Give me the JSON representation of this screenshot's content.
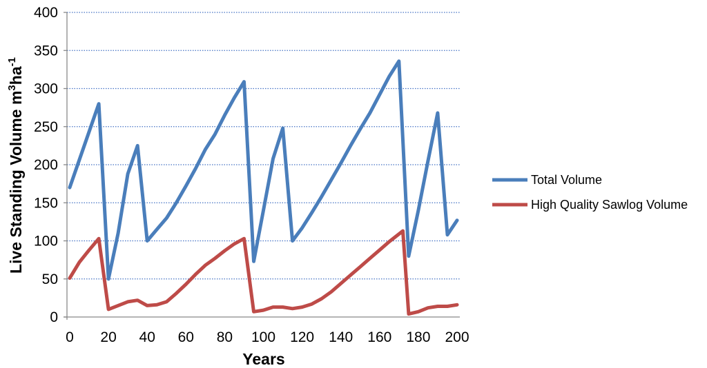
{
  "chart_data": {
    "type": "line",
    "xlabel": "Years",
    "ylabel": "Live Standing Volume m",
    "ylabel_sup1": "3",
    "ylabel_mid": "ha",
    "ylabel_sup2": "-1",
    "xlim": [
      0,
      200
    ],
    "ylim": [
      0,
      400
    ],
    "x_ticks": [
      0,
      20,
      40,
      60,
      80,
      100,
      120,
      140,
      160,
      180,
      200
    ],
    "y_ticks": [
      0,
      50,
      100,
      150,
      200,
      250,
      300,
      350,
      400
    ],
    "grid": "horizontal-dotted",
    "legend_position": "right",
    "series": [
      {
        "name": "Total Volume",
        "color": "#4a7ebb",
        "points": [
          [
            0,
            170
          ],
          [
            15,
            280
          ],
          [
            20,
            50
          ],
          [
            25,
            110
          ],
          [
            30,
            188
          ],
          [
            35,
            225
          ],
          [
            40,
            100
          ],
          [
            45,
            115
          ],
          [
            50,
            130
          ],
          [
            55,
            150
          ],
          [
            60,
            172
          ],
          [
            65,
            195
          ],
          [
            70,
            220
          ],
          [
            75,
            240
          ],
          [
            80,
            265
          ],
          [
            85,
            288
          ],
          [
            90,
            309
          ],
          [
            95,
            73
          ],
          [
            100,
            140
          ],
          [
            105,
            208
          ],
          [
            110,
            248
          ],
          [
            115,
            100
          ],
          [
            120,
            117
          ],
          [
            125,
            137
          ],
          [
            130,
            158
          ],
          [
            135,
            180
          ],
          [
            140,
            202
          ],
          [
            145,
            225
          ],
          [
            150,
            247
          ],
          [
            155,
            268
          ],
          [
            160,
            292
          ],
          [
            165,
            316
          ],
          [
            170,
            336
          ],
          [
            175,
            80
          ],
          [
            180,
            140
          ],
          [
            185,
            205
          ],
          [
            190,
            268
          ],
          [
            195,
            108
          ],
          [
            200,
            127
          ]
        ]
      },
      {
        "name": "High Quality Sawlog Volume",
        "color": "#be4b48",
        "points": [
          [
            0,
            51
          ],
          [
            5,
            72
          ],
          [
            10,
            88
          ],
          [
            15,
            103
          ],
          [
            20,
            10
          ],
          [
            25,
            15
          ],
          [
            30,
            20
          ],
          [
            35,
            22
          ],
          [
            40,
            15
          ],
          [
            45,
            16
          ],
          [
            50,
            20
          ],
          [
            55,
            31
          ],
          [
            60,
            43
          ],
          [
            65,
            56
          ],
          [
            70,
            68
          ],
          [
            75,
            77
          ],
          [
            80,
            87
          ],
          [
            85,
            96
          ],
          [
            90,
            103
          ],
          [
            95,
            7
          ],
          [
            100,
            9
          ],
          [
            105,
            13
          ],
          [
            110,
            13
          ],
          [
            115,
            11
          ],
          [
            120,
            13
          ],
          [
            125,
            17
          ],
          [
            130,
            24
          ],
          [
            135,
            33
          ],
          [
            140,
            44
          ],
          [
            145,
            55
          ],
          [
            150,
            66
          ],
          [
            155,
            77
          ],
          [
            160,
            88
          ],
          [
            165,
            99
          ],
          [
            170,
            109
          ],
          [
            172,
            113
          ],
          [
            175,
            4
          ],
          [
            180,
            7
          ],
          [
            185,
            12
          ],
          [
            190,
            14
          ],
          [
            195,
            14
          ],
          [
            200,
            16
          ]
        ]
      }
    ]
  }
}
